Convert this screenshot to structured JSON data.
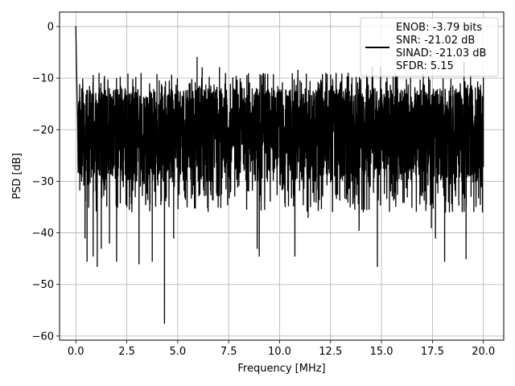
{
  "chart_data": {
    "type": "line",
    "xlabel": "Frequency [MHz]",
    "ylabel": "PSD [dB]",
    "xlim": [
      -0.8,
      21.0
    ],
    "ylim": [
      -60.8,
      2.8
    ],
    "xticks": [
      0.0,
      2.5,
      5.0,
      7.5,
      10.0,
      12.5,
      15.0,
      17.5,
      20.0
    ],
    "xtick_labels": [
      "0.0",
      "2.5",
      "5.0",
      "7.5",
      "10.0",
      "12.5",
      "15.0",
      "17.5",
      "20.0"
    ],
    "yticks": [
      0,
      -10,
      -20,
      -30,
      -40,
      -50,
      -60
    ],
    "ytick_labels": [
      "0",
      "−10",
      "−20",
      "−30",
      "−40",
      "−50",
      "−60"
    ],
    "grid": true,
    "legend_position": "upper right",
    "line_color": "#000000",
    "series": [
      {
        "name": "ENOB: -3.79 bits\nSNR: -21.02 dB\nSINAD: -21.03 dB\nSFDR: 5.15",
        "legend_lines": [
          "ENOB: -3.79 bits",
          "SNR: -21.02 dB",
          "SINAD: -21.03 dB",
          "SFDR: 5.15"
        ],
        "noise_floor_db": -20,
        "noise_band_db": [
          -12,
          -30
        ],
        "peaks": [
          {
            "x": 0.0,
            "y": 0.0
          },
          {
            "x": 0.03,
            "y": -7.5
          },
          {
            "x": 0.08,
            "y": -17.0
          },
          {
            "x": 5.95,
            "y": -6.0
          },
          {
            "x": 6.2,
            "y": -8.0
          },
          {
            "x": 7.05,
            "y": -8.0
          },
          {
            "x": 10.9,
            "y": -8.5
          },
          {
            "x": 14.55,
            "y": -8.0
          },
          {
            "x": 14.95,
            "y": -8.0
          },
          {
            "x": 19.05,
            "y": -7.0
          },
          {
            "x": 20.0,
            "y": -10.0
          }
        ],
        "dips": [
          {
            "x": 0.45,
            "y": -41.0
          },
          {
            "x": 0.55,
            "y": -45.5
          },
          {
            "x": 0.85,
            "y": -44.5
          },
          {
            "x": 1.05,
            "y": -46.5
          },
          {
            "x": 1.25,
            "y": -43.0
          },
          {
            "x": 1.65,
            "y": -42.0
          },
          {
            "x": 2.0,
            "y": -45.5
          },
          {
            "x": 3.1,
            "y": -46.0
          },
          {
            "x": 3.75,
            "y": -45.5
          },
          {
            "x": 4.35,
            "y": -57.5
          },
          {
            "x": 4.8,
            "y": -41.0
          },
          {
            "x": 8.9,
            "y": -43.0
          },
          {
            "x": 9.0,
            "y": -44.5
          },
          {
            "x": 10.75,
            "y": -44.5
          },
          {
            "x": 11.4,
            "y": -37.0
          },
          {
            "x": 13.9,
            "y": -39.5
          },
          {
            "x": 14.8,
            "y": -46.5
          },
          {
            "x": 17.45,
            "y": -39.0
          },
          {
            "x": 17.65,
            "y": -41.0
          },
          {
            "x": 18.1,
            "y": -45.5
          },
          {
            "x": 19.15,
            "y": -45.0
          },
          {
            "x": 19.85,
            "y": -34.5
          }
        ]
      }
    ]
  }
}
